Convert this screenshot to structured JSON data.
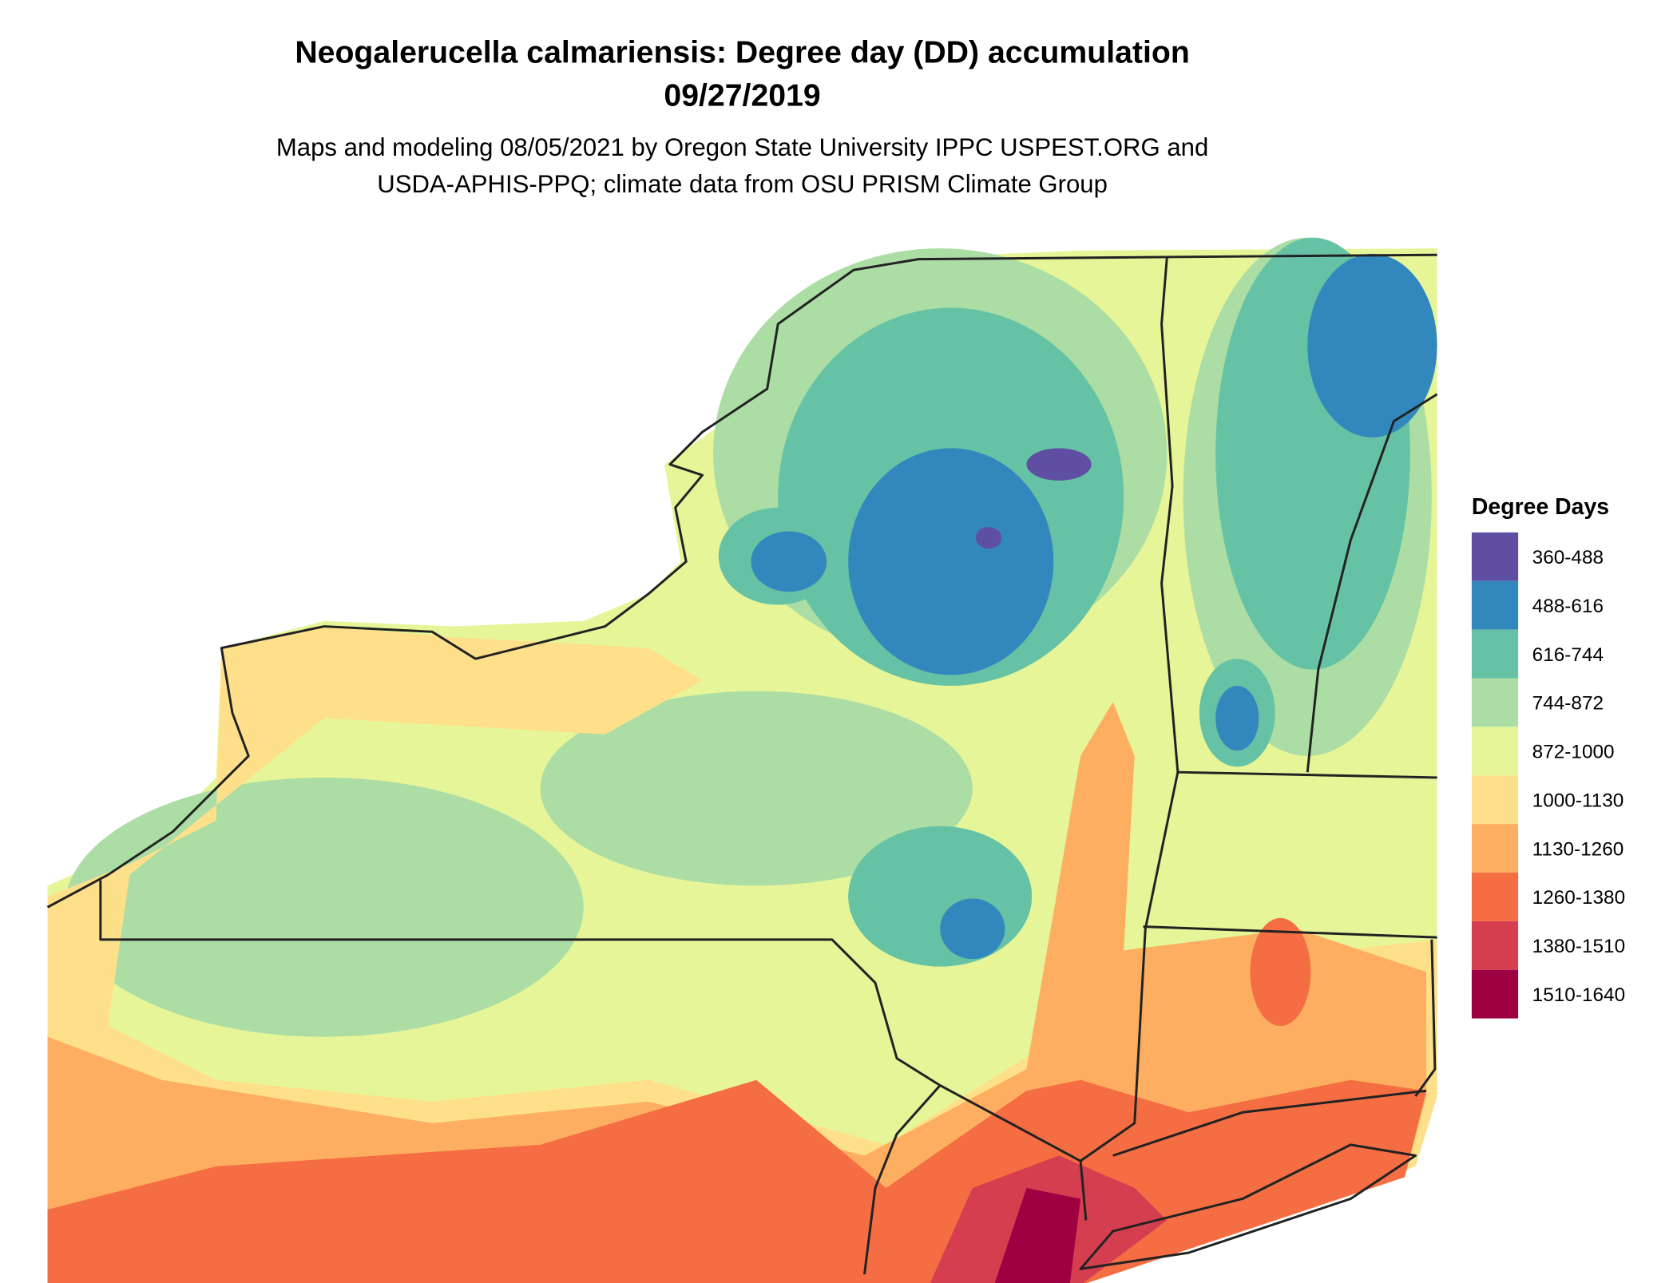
{
  "map": {
    "title_lines": [
      "Neogalerucella calmariensis: Degree day (DD) accumulation",
      "09/27/2019"
    ],
    "subtitle_lines": [
      "Maps and modeling 08/05/2021 by Oregon State University IPPC USPEST.ORG and",
      "USDA-APHIS-PPQ; climate data from OSU PRISM Climate Group"
    ],
    "legend": {
      "title": "Degree Days",
      "items": [
        {
          "label": "360-488",
          "color": "#5e4fa2"
        },
        {
          "label": "488-616",
          "color": "#3288bd"
        },
        {
          "label": "616-744",
          "color": "#66c2a5"
        },
        {
          "label": "744-872",
          "color": "#abdda4"
        },
        {
          "label": "872-1000",
          "color": "#e6f598"
        },
        {
          "label": "1000-1130",
          "color": "#fee08b"
        },
        {
          "label": "1130-1260",
          "color": "#fdae61"
        },
        {
          "label": "1260-1380",
          "color": "#f46d43"
        },
        {
          "label": "1380-1510",
          "color": "#d53e4f"
        },
        {
          "label": "1510-1640",
          "color": "#9e0142"
        }
      ]
    }
  }
}
